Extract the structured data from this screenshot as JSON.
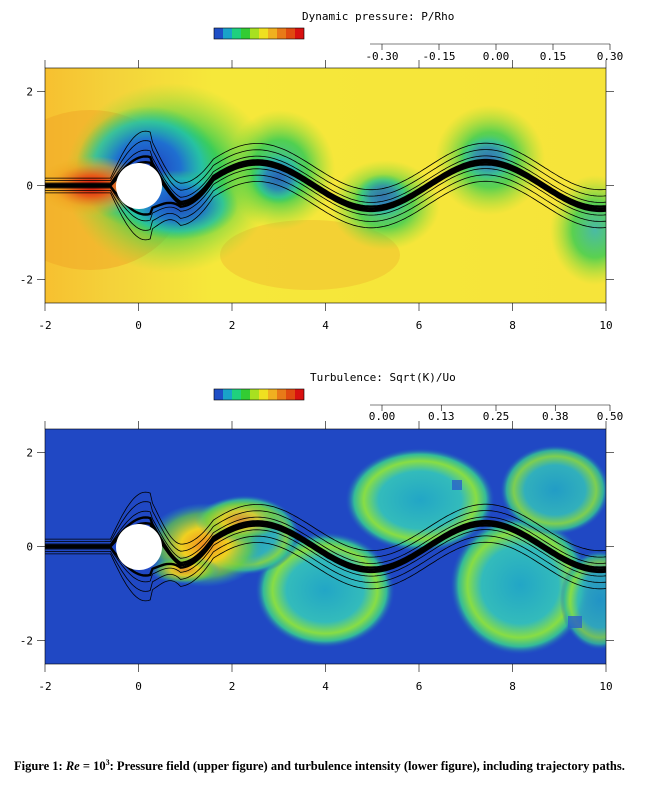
{
  "chart_data": [
    {
      "type": "heatmap",
      "title": "Dynamic pressure: P/Rho",
      "colorbar": {
        "range": [
          -0.3,
          0.3
        ],
        "tick_labels": [
          "-0.30",
          "-0.15",
          "0.00",
          "0.15",
          "0.30"
        ],
        "colors": [
          "#1f4fc6",
          "#19a3c9",
          "#1fd07e",
          "#33cc33",
          "#a8e020",
          "#f0e020",
          "#f0b020",
          "#e87a18",
          "#e04a10",
          "#d81010"
        ]
      },
      "xlim": [
        -2,
        10
      ],
      "ylim": [
        -2.5,
        2.5
      ],
      "xticks": [
        "-2",
        "0",
        "2",
        "4",
        "6",
        "8",
        "10"
      ],
      "yticks": [
        "2",
        "0",
        "-2"
      ],
      "grid": false,
      "overlay": "trajectory paths"
    },
    {
      "type": "heatmap",
      "title": "Turbulence: Sqrt(K)/Uo",
      "colorbar": {
        "range": [
          0.0,
          0.5
        ],
        "tick_labels": [
          "0.00",
          "0.13",
          "0.25",
          "0.38",
          "0.50"
        ],
        "colors": [
          "#1f4fc6",
          "#19a3c9",
          "#1fd07e",
          "#33cc33",
          "#a8e020",
          "#f0e020",
          "#f0b020",
          "#e87a18",
          "#e04a10",
          "#d81010"
        ]
      },
      "xlim": [
        -2,
        10
      ],
      "ylim": [
        -2.5,
        2.5
      ],
      "xticks": [
        "-2",
        "0",
        "2",
        "4",
        "6",
        "8",
        "10"
      ],
      "yticks": [
        "2",
        "0",
        "-2"
      ],
      "grid": false,
      "overlay": "trajectory paths"
    }
  ],
  "caption": {
    "label": "Figure 1:",
    "re_symbol": "Re",
    "re_value": "= 10",
    "re_exp": "3",
    "text": ": Pressure field (upper figure) and turbulence intensity (lower figure), including trajectory paths."
  }
}
